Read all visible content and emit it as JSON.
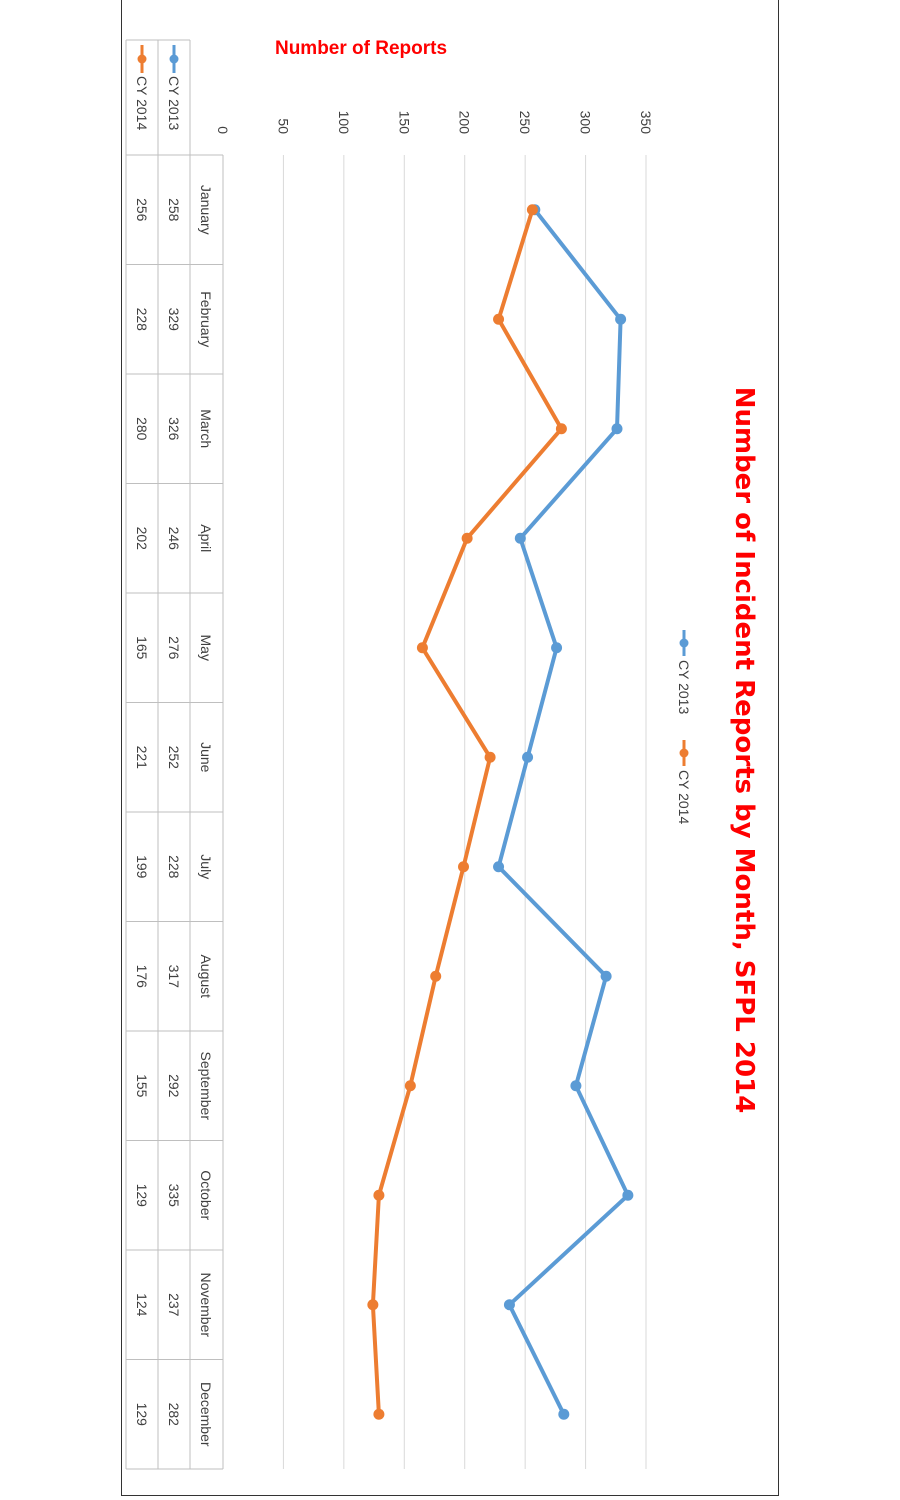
{
  "chart_data": {
    "type": "line",
    "title": "Number of Incident Reports by Month,  SFPL 2014",
    "ylabel": "Number of Reports",
    "xlabel": "",
    "ylim": [
      0,
      350
    ],
    "yticks": [
      0,
      50,
      100,
      150,
      200,
      250,
      300,
      350
    ],
    "grid": true,
    "legend": "top",
    "data_table": true,
    "categories": [
      "January",
      "February",
      "March",
      "April",
      "May",
      "June",
      "July",
      "August",
      "September",
      "October",
      "November",
      "December"
    ],
    "series": [
      {
        "name": "CY 2013",
        "color": "#5b9bd5",
        "values": [
          258,
          329,
          326,
          246,
          276,
          252,
          228,
          317,
          292,
          335,
          237,
          282
        ]
      },
      {
        "name": "CY 2014",
        "color": "#ed7d31",
        "values": [
          256,
          228,
          280,
          202,
          165,
          221,
          199,
          176,
          155,
          129,
          124,
          129
        ]
      }
    ]
  }
}
